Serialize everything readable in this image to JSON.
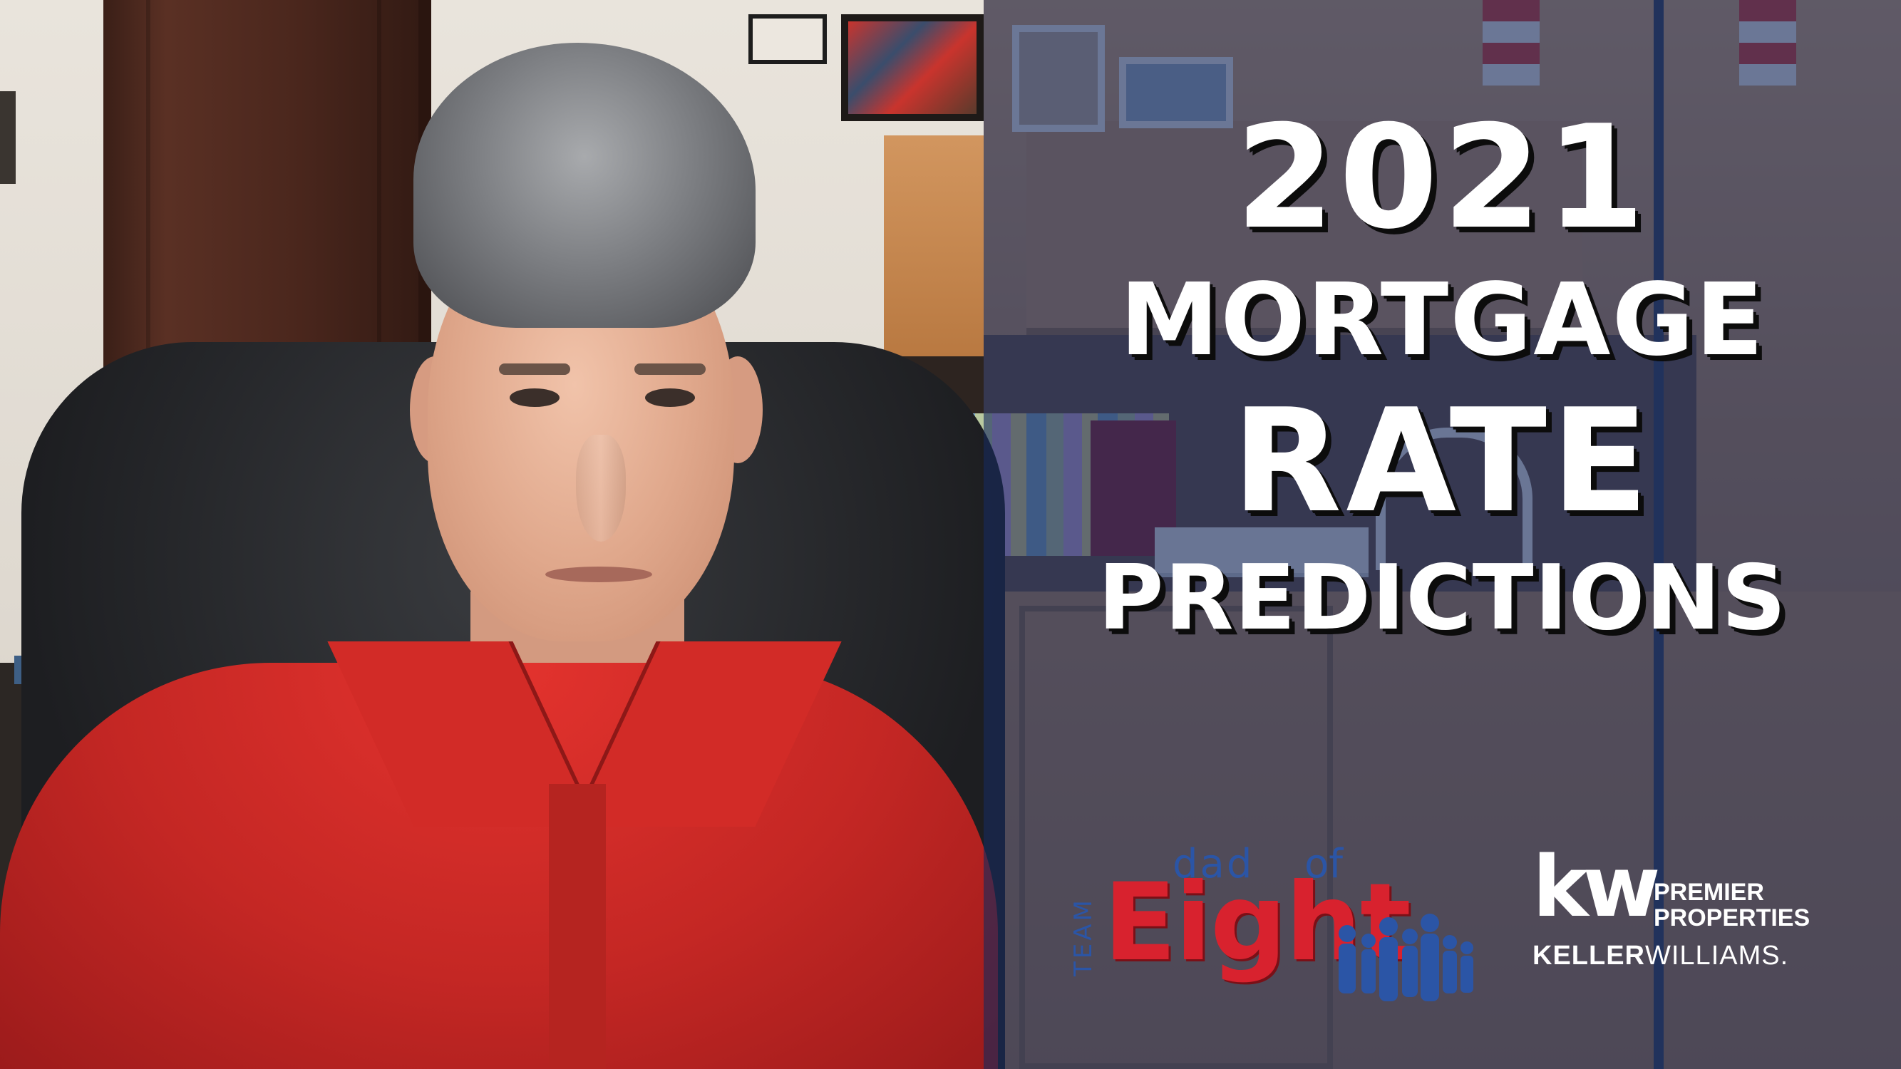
{
  "headline": {
    "year": "2021",
    "line2": "MORTGAGE",
    "line3": "RATE",
    "line4": "PREDICTIONS"
  },
  "team_logo": {
    "team": "TEAM",
    "dad": "dad",
    "of": "of",
    "eight": "Eight",
    "colors": {
      "red": "#d8222e",
      "blue": "#2b55a6"
    }
  },
  "brokerage_logo": {
    "mark": "kw",
    "line1": "PREMIER",
    "line2": "PROPERTIES",
    "brand_first": "KELLER",
    "brand_second": "WILLIAMS."
  },
  "colors": {
    "overlay": "#162a5c",
    "headline_text": "#ffffff",
    "shirt": "#c42724"
  }
}
